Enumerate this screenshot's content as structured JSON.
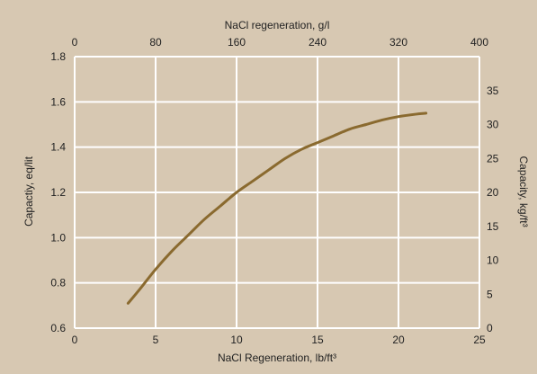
{
  "chart_data": {
    "type": "line",
    "title": "",
    "background": "#d7c8b2",
    "grid": true,
    "grid_color": "#ffffff",
    "line_color": "#8a6a2f",
    "x_axis_bottom": {
      "label": "NaCl Regeneration, lb/ft³",
      "range": [
        0,
        25
      ],
      "ticks": [
        0,
        5,
        10,
        15,
        20,
        25
      ]
    },
    "x_axis_top": {
      "label": "NaCl regeneration, g/l",
      "range": [
        0,
        400
      ],
      "ticks": [
        0,
        80,
        160,
        240,
        320,
        400
      ]
    },
    "y_axis_left": {
      "label": "Capactiy, eq/lit",
      "range": [
        0.6,
        1.8
      ],
      "ticks": [
        "0.6",
        "0.8",
        "1.0",
        "1.2",
        "1.4",
        "1.6",
        "1.8"
      ]
    },
    "y_axis_right": {
      "label": "Capacity, kg/ft³",
      "range": [
        0,
        40
      ],
      "ticks": [
        0,
        5,
        10,
        15,
        20,
        25,
        30,
        35
      ]
    },
    "series": [
      {
        "x": [
          3.3,
          4,
          5,
          6,
          7,
          8,
          9,
          10,
          11,
          12,
          13,
          14,
          15,
          16,
          17,
          18,
          19,
          20,
          21,
          21.7
        ],
        "y": [
          0.71,
          0.77,
          0.86,
          0.94,
          1.01,
          1.08,
          1.14,
          1.2,
          1.25,
          1.3,
          1.35,
          1.39,
          1.42,
          1.45,
          1.48,
          1.5,
          1.52,
          1.535,
          1.545,
          1.55
        ]
      }
    ]
  }
}
